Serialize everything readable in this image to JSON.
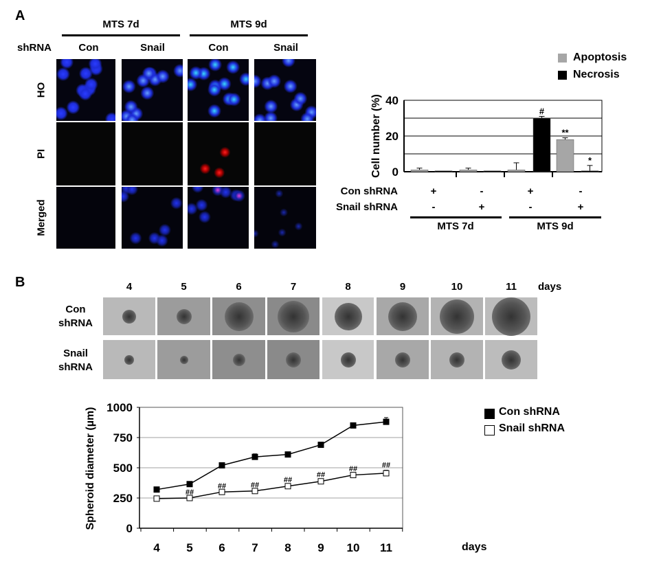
{
  "panel_a": {
    "label": "A",
    "groups": [
      "MTS 7d",
      "MTS 9d"
    ],
    "shrna_label": "shRNA",
    "columns": [
      "Con",
      "Snail",
      "Con",
      "Snail"
    ],
    "rows": [
      "HO",
      "PI",
      "Merged"
    ]
  },
  "panel_b": {
    "label": "B",
    "days": [
      "4",
      "5",
      "6",
      "7",
      "8",
      "9",
      "10",
      "11"
    ],
    "days_label": "days",
    "rows": [
      "Con shRNA",
      "Snail shRNA"
    ]
  },
  "chart_data": [
    {
      "type": "bar",
      "ylabel": "Cell number (%)",
      "ylim": [
        0,
        40
      ],
      "yticks": [
        0,
        20,
        40
      ],
      "grid": true,
      "legend_placement": "top-right",
      "categories": [
        "Con shRNA / MTS 7d",
        "Snail shRNA / MTS 7d",
        "Con shRNA / MTS 9d",
        "Snail shRNA / MTS 9d"
      ],
      "condition_rows": [
        {
          "label": "Con shRNA",
          "values": [
            "+",
            "-",
            "+",
            "-"
          ]
        },
        {
          "label": "Snail shRNA",
          "values": [
            "-",
            "+",
            "-",
            "+"
          ]
        }
      ],
      "group_labels": [
        "MTS 7d",
        "MTS 9d"
      ],
      "series": [
        {
          "name": "Apoptosis",
          "color": "#a6a6a6",
          "values": [
            1,
            1,
            1,
            18
          ],
          "errors": [
            1,
            1,
            4,
            1
          ],
          "annotations": [
            "",
            "",
            "",
            "**"
          ]
        },
        {
          "name": "Necrosis",
          "color": "#000000",
          "values": [
            0.5,
            0.5,
            30,
            0.5
          ],
          "errors": [
            0,
            0,
            1,
            3
          ],
          "annotations": [
            "",
            "",
            "#",
            "*"
          ]
        }
      ]
    },
    {
      "type": "line",
      "ylabel": "Spheroid diameter (µm)",
      "xlabel": "days",
      "x": [
        4,
        5,
        6,
        7,
        8,
        9,
        10,
        11
      ],
      "ylim": [
        0,
        1000
      ],
      "yticks": [
        0,
        250,
        500,
        750,
        1000
      ],
      "grid": true,
      "legend_placement": "right",
      "series": [
        {
          "name": "Con shRNA",
          "marker": "filled-square",
          "values": [
            320,
            365,
            520,
            590,
            610,
            690,
            850,
            880
          ],
          "errors": [
            8,
            10,
            8,
            25,
            10,
            10,
            12,
            35
          ],
          "annotations": [
            "",
            "",
            "",
            "",
            "",
            "",
            "",
            ""
          ]
        },
        {
          "name": "Snail shRNA",
          "marker": "open-square",
          "values": [
            245,
            250,
            300,
            308,
            348,
            388,
            440,
            455
          ],
          "errors": [
            5,
            5,
            8,
            8,
            10,
            12,
            10,
            25
          ],
          "annotations": [
            "",
            "##",
            "##",
            "##",
            "##",
            "##",
            "##",
            "##"
          ]
        }
      ]
    }
  ]
}
